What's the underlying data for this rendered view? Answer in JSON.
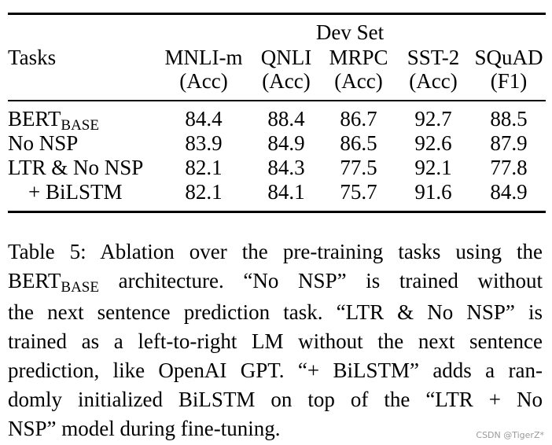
{
  "table": {
    "group_header": "Dev Set",
    "tasks_label": "Tasks",
    "columns": [
      {
        "name": "MNLI-m",
        "metric": "(Acc)"
      },
      {
        "name": "QNLI",
        "metric": "(Acc)"
      },
      {
        "name": "MRPC",
        "metric": "(Acc)"
      },
      {
        "name": "SST-2",
        "metric": "(Acc)"
      },
      {
        "name": "SQuAD",
        "metric": "(F1)"
      }
    ],
    "rows": [
      {
        "task": "BERT",
        "task_sub": "BASE",
        "values": [
          "84.4",
          "88.4",
          "86.7",
          "92.7",
          "88.5"
        ]
      },
      {
        "task": "No NSP",
        "task_sub": "",
        "values": [
          "83.9",
          "84.9",
          "86.5",
          "92.6",
          "87.9"
        ]
      },
      {
        "task": "LTR & No NSP",
        "task_sub": "",
        "values": [
          "82.1",
          "84.3",
          "77.5",
          "92.1",
          "77.8"
        ]
      },
      {
        "task": "+ BiLSTM",
        "task_sub": "",
        "values": [
          "82.1",
          "84.1",
          "75.7",
          "91.6",
          "84.9"
        ]
      }
    ]
  },
  "caption": {
    "line1": "Table 5:  Ablation over the pre-training tasks using the",
    "line2_a": "BERT",
    "line2_sub": "BASE",
    "line2_b": " architecture.  “No NSP” is trained without",
    "line3": "the next sentence prediction task. “LTR & No NSP” is",
    "line4": "trained as a left-to-right LM without the next sentence",
    "line5": "prediction, like OpenAI GPT. “+ BiLSTM” adds a ran-",
    "line6": "domly initialized BiLSTM on top of the “LTR + No",
    "line7": "NSP” model during fine-tuning."
  },
  "watermark": "CSDN @TigerZ*"
}
